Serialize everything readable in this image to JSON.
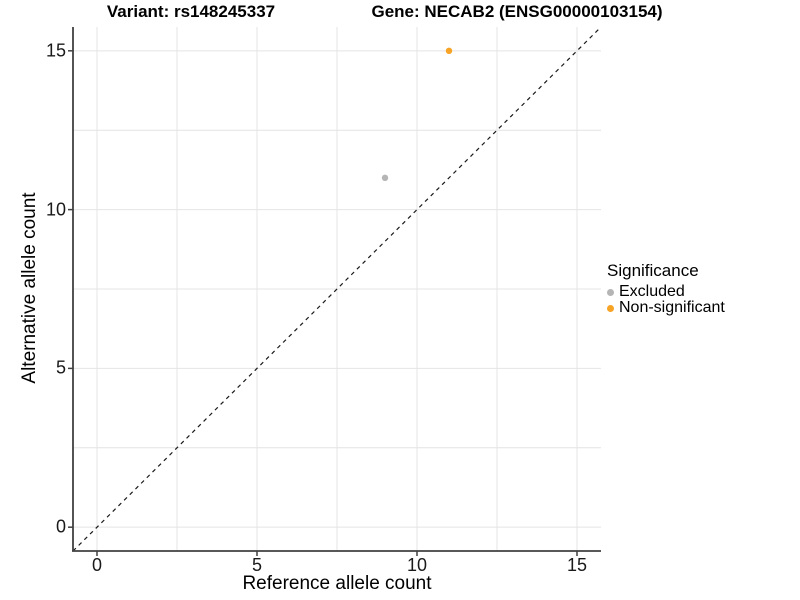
{
  "titles": {
    "variant": "Variant: rs148245337",
    "gene": "Gene: NECAB2 (ENSG00000103154)"
  },
  "axes": {
    "x_title": "Reference allele count",
    "y_title": "Alternative allele count"
  },
  "legend": {
    "title": "Significance",
    "items": [
      {
        "label": "Excluded",
        "color": "#B5B5B5"
      },
      {
        "label": "Non-significant",
        "color": "#F7A325"
      }
    ]
  },
  "chart_data": {
    "type": "scatter",
    "title": "Variant: rs148245337 / Gene: NECAB2 (ENSG00000103154)",
    "xlabel": "Reference allele count",
    "ylabel": "Alternative allele count",
    "xlim": [
      -0.75,
      15.75
    ],
    "ylim": [
      -0.75,
      15.75
    ],
    "x_ticks": [
      0,
      5,
      10,
      15
    ],
    "y_ticks": [
      0,
      5,
      10,
      15
    ],
    "minor_gridlines": [
      2.5,
      7.5,
      12.5
    ],
    "grid": "on",
    "legend_position": "right",
    "series": [
      {
        "name": "Excluded",
        "color": "#B5B5B5",
        "points": [
          {
            "x": 9,
            "y": 11
          }
        ]
      },
      {
        "name": "Non-significant",
        "color": "#F7A325",
        "points": [
          {
            "x": 11,
            "y": 15
          }
        ]
      }
    ],
    "reference_line": {
      "type": "identity",
      "style": "dashed",
      "from": [
        -0.75,
        -0.75
      ],
      "to": [
        15.75,
        15.75
      ]
    }
  },
  "style": {
    "grid_color": "#E4E4E4",
    "axis_color": "#404040",
    "dash_color": "#1a1a1a"
  }
}
